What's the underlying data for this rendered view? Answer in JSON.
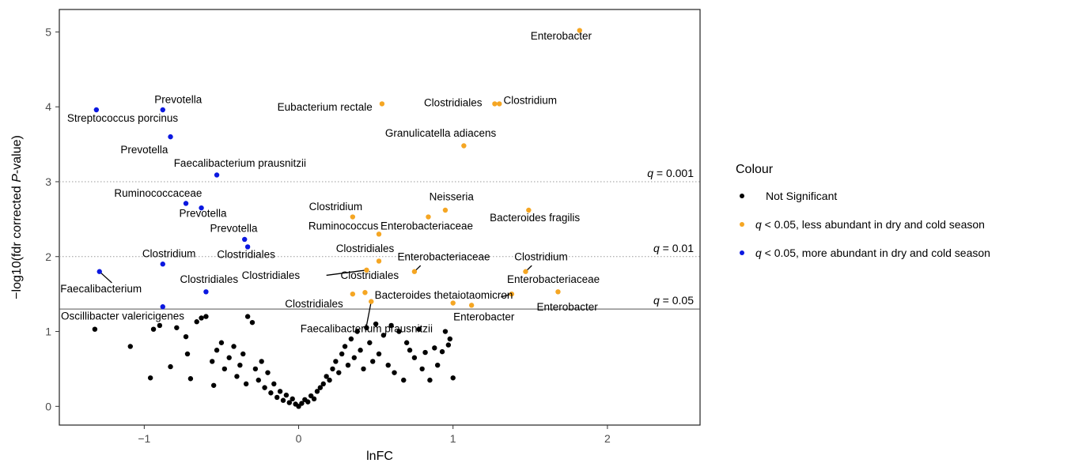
{
  "chart_data": {
    "type": "scatter",
    "title": "",
    "xlabel": "lnFC",
    "ylabel": "-log10(fdr corrected P-value)",
    "ylabel_parts": [
      "−log10(fdr corrected ",
      "P",
      "-value)"
    ],
    "xlim": [
      -1.55,
      2.6
    ],
    "ylim": [
      -0.25,
      5.3
    ],
    "xticks": [
      -1,
      0,
      1,
      2
    ],
    "xtick_labels": [
      "−1",
      "0",
      "1",
      "2"
    ],
    "yticks": [
      0,
      1,
      2,
      3,
      4,
      5
    ],
    "grid": false,
    "legend_position": "right",
    "legend": {
      "title": "Colour",
      "entries": [
        {
          "key": "ns",
          "color": "#000000",
          "italic": "",
          "text": "Not Significant"
        },
        {
          "key": "less",
          "color": "#f5a623",
          "italic": "q",
          "text": " < 0.05, less abundant in dry and cold season"
        },
        {
          "key": "more",
          "color": "#0b18e0",
          "italic": "q",
          "text": " < 0.05, more abundant in dry and cold season"
        }
      ]
    },
    "reference_lines": [
      {
        "y": 3.0,
        "style": "dotted",
        "italic": "q",
        "label": " = 0.001"
      },
      {
        "y": 2.0,
        "style": "dotted",
        "italic": "q",
        "label": " = 0.01"
      },
      {
        "y": 1.3,
        "style": "solid",
        "italic": "q",
        "label": " = 0.05"
      }
    ],
    "series": [
      {
        "key": "less",
        "color": "#f5a623",
        "points": [
          {
            "x": 1.82,
            "y": 5.02,
            "label": "Enterobacter"
          },
          {
            "x": 0.54,
            "y": 4.04,
            "label": "Eubacterium rectale"
          },
          {
            "x": 1.27,
            "y": 4.04,
            "label": "Clostridiales"
          },
          {
            "x": 1.3,
            "y": 4.04,
            "label": "Clostridium"
          },
          {
            "x": 1.07,
            "y": 3.48,
            "label": "Granulicatella adiacens"
          },
          {
            "x": 0.95,
            "y": 2.62,
            "label": "Neisseria"
          },
          {
            "x": 1.49,
            "y": 2.62,
            "label": "Bacteroides fragilis"
          },
          {
            "x": 0.35,
            "y": 2.53,
            "label": "Clostridium"
          },
          {
            "x": 0.84,
            "y": 2.53,
            "label": "Enterobacteriaceae"
          },
          {
            "x": 0.52,
            "y": 2.3,
            "label": "Ruminococcus"
          },
          {
            "x": 0.52,
            "y": 1.94,
            "label": "Clostridiales"
          },
          {
            "x": 0.44,
            "y": 1.82,
            "label": "Clostridiales"
          },
          {
            "x": 0.75,
            "y": 1.8,
            "label": "Enterobacteriaceae"
          },
          {
            "x": 1.47,
            "y": 1.8,
            "label": "Clostridium"
          },
          {
            "x": 0.35,
            "y": 1.5,
            "label": "Clostridiales"
          },
          {
            "x": 0.43,
            "y": 1.52,
            "label": "Clostridiales"
          },
          {
            "x": 0.47,
            "y": 1.4,
            "label": "Faecalibacterium prausnitzii"
          },
          {
            "x": 1.38,
            "y": 1.5,
            "label": "Bacteroides thetaiotaomicron"
          },
          {
            "x": 1.68,
            "y": 1.53,
            "label": "Enterobacteriaceae"
          },
          {
            "x": 1.0,
            "y": 1.38,
            "label": "Enterobacter"
          },
          {
            "x": 1.12,
            "y": 1.35,
            "label": "Enterobacter"
          }
        ]
      },
      {
        "key": "more",
        "color": "#0b18e0",
        "points": [
          {
            "x": -1.31,
            "y": 3.96,
            "label": "Streptococcus porcinus"
          },
          {
            "x": -0.88,
            "y": 3.96,
            "label": "Prevotella"
          },
          {
            "x": -0.83,
            "y": 3.6,
            "label": "Prevotella"
          },
          {
            "x": -0.53,
            "y": 3.09,
            "label": "Faecalibacterium prausnitzii"
          },
          {
            "x": -0.73,
            "y": 2.71,
            "label": "Ruminococcaceae"
          },
          {
            "x": -0.63,
            "y": 2.65,
            "label": "Prevotella"
          },
          {
            "x": -0.35,
            "y": 2.23,
            "label": "Prevotella"
          },
          {
            "x": -0.33,
            "y": 2.13,
            "label": "Clostridiales"
          },
          {
            "x": -0.88,
            "y": 1.9,
            "label": "Clostridium"
          },
          {
            "x": -1.29,
            "y": 1.8,
            "label": "Faecalibacterium"
          },
          {
            "x": -0.6,
            "y": 1.53,
            "label": "Clostridiales"
          },
          {
            "x": -0.88,
            "y": 1.33,
            "label": "Oscillibacter valericigenes"
          }
        ]
      },
      {
        "key": "ns",
        "color": "#000000",
        "points": [
          {
            "x": -1.32,
            "y": 1.03
          },
          {
            "x": -1.09,
            "y": 0.8
          },
          {
            "x": -0.96,
            "y": 0.38
          },
          {
            "x": -0.94,
            "y": 1.03
          },
          {
            "x": -0.9,
            "y": 1.08
          },
          {
            "x": -0.83,
            "y": 0.53
          },
          {
            "x": -0.79,
            "y": 1.05
          },
          {
            "x": -0.73,
            "y": 0.93
          },
          {
            "x": -0.72,
            "y": 0.7
          },
          {
            "x": -0.7,
            "y": 0.37
          },
          {
            "x": -0.66,
            "y": 1.13
          },
          {
            "x": -0.63,
            "y": 1.18
          },
          {
            "x": -0.6,
            "y": 1.2
          },
          {
            "x": -0.56,
            "y": 0.6
          },
          {
            "x": -0.55,
            "y": 0.28
          },
          {
            "x": -0.53,
            "y": 0.75
          },
          {
            "x": -0.5,
            "y": 0.85
          },
          {
            "x": -0.48,
            "y": 0.5
          },
          {
            "x": -0.45,
            "y": 0.65
          },
          {
            "x": -0.42,
            "y": 0.8
          },
          {
            "x": -0.4,
            "y": 0.4
          },
          {
            "x": -0.38,
            "y": 0.55
          },
          {
            "x": -0.36,
            "y": 0.7
          },
          {
            "x": -0.34,
            "y": 0.3
          },
          {
            "x": -0.33,
            "y": 1.2
          },
          {
            "x": -0.3,
            "y": 1.12
          },
          {
            "x": -0.28,
            "y": 0.5
          },
          {
            "x": -0.26,
            "y": 0.35
          },
          {
            "x": -0.24,
            "y": 0.6
          },
          {
            "x": -0.22,
            "y": 0.25
          },
          {
            "x": -0.2,
            "y": 0.45
          },
          {
            "x": -0.18,
            "y": 0.18
          },
          {
            "x": -0.16,
            "y": 0.3
          },
          {
            "x": -0.14,
            "y": 0.12
          },
          {
            "x": -0.12,
            "y": 0.2
          },
          {
            "x": -0.1,
            "y": 0.08
          },
          {
            "x": -0.08,
            "y": 0.15
          },
          {
            "x": -0.06,
            "y": 0.05
          },
          {
            "x": -0.04,
            "y": 0.1
          },
          {
            "x": -0.02,
            "y": 0.03
          },
          {
            "x": 0.0,
            "y": 0.0
          },
          {
            "x": 0.02,
            "y": 0.04
          },
          {
            "x": 0.04,
            "y": 0.09
          },
          {
            "x": 0.06,
            "y": 0.06
          },
          {
            "x": 0.08,
            "y": 0.14
          },
          {
            "x": 0.1,
            "y": 0.1
          },
          {
            "x": 0.12,
            "y": 0.2
          },
          {
            "x": 0.14,
            "y": 0.25
          },
          {
            "x": 0.16,
            "y": 0.3
          },
          {
            "x": 0.18,
            "y": 0.4
          },
          {
            "x": 0.2,
            "y": 0.35
          },
          {
            "x": 0.22,
            "y": 0.5
          },
          {
            "x": 0.24,
            "y": 0.6
          },
          {
            "x": 0.26,
            "y": 0.45
          },
          {
            "x": 0.28,
            "y": 0.7
          },
          {
            "x": 0.3,
            "y": 0.8
          },
          {
            "x": 0.32,
            "y": 0.55
          },
          {
            "x": 0.34,
            "y": 0.9
          },
          {
            "x": 0.36,
            "y": 0.65
          },
          {
            "x": 0.38,
            "y": 1.0
          },
          {
            "x": 0.4,
            "y": 0.75
          },
          {
            "x": 0.42,
            "y": 0.5
          },
          {
            "x": 0.44,
            "y": 1.05
          },
          {
            "x": 0.46,
            "y": 0.85
          },
          {
            "x": 0.48,
            "y": 0.6
          },
          {
            "x": 0.5,
            "y": 1.1
          },
          {
            "x": 0.52,
            "y": 0.7
          },
          {
            "x": 0.55,
            "y": 0.95
          },
          {
            "x": 0.58,
            "y": 0.55
          },
          {
            "x": 0.6,
            "y": 1.08
          },
          {
            "x": 0.62,
            "y": 0.45
          },
          {
            "x": 0.65,
            "y": 1.0
          },
          {
            "x": 0.68,
            "y": 0.35
          },
          {
            "x": 0.7,
            "y": 0.85
          },
          {
            "x": 0.72,
            "y": 0.75
          },
          {
            "x": 0.75,
            "y": 0.65
          },
          {
            "x": 0.78,
            "y": 1.03
          },
          {
            "x": 0.8,
            "y": 0.5
          },
          {
            "x": 0.82,
            "y": 0.72
          },
          {
            "x": 0.85,
            "y": 0.35
          },
          {
            "x": 0.88,
            "y": 0.78
          },
          {
            "x": 0.9,
            "y": 0.55
          },
          {
            "x": 0.93,
            "y": 0.73
          },
          {
            "x": 0.95,
            "y": 1.0
          },
          {
            "x": 0.97,
            "y": 0.82
          },
          {
            "x": 0.98,
            "y": 0.9
          },
          {
            "x": 1.0,
            "y": 0.38
          }
        ]
      }
    ],
    "annotations": [
      {
        "text": "Enterobacter",
        "x": 1.7,
        "y": 4.9
      },
      {
        "text": "Eubacterium rectale",
        "x": 0.17,
        "y": 3.95
      },
      {
        "text": "Clostridiales",
        "x": 1.0,
        "y": 4.01
      },
      {
        "text": "Clostridium",
        "x": 1.5,
        "y": 4.04
      },
      {
        "text": "Granulicatella adiacens",
        "x": 0.92,
        "y": 3.6
      },
      {
        "text": "Neisseria",
        "x": 0.99,
        "y": 2.75
      },
      {
        "text": "Bacteroides fragilis",
        "x": 1.53,
        "y": 2.47
      },
      {
        "text": "Clostridium",
        "x": 0.24,
        "y": 2.62
      },
      {
        "text": "Enterobacteriaceae",
        "x": 0.83,
        "y": 2.36
      },
      {
        "text": "Ruminococcus",
        "x": 0.29,
        "y": 2.36
      },
      {
        "text": "Clostridiales",
        "x": 0.43,
        "y": 2.06
      },
      {
        "text": "Enterobacteriaceae",
        "x": 0.94,
        "y": 1.95
      },
      {
        "text": "Clostridium",
        "x": 1.57,
        "y": 1.95
      },
      {
        "text": "Clostridiales",
        "x": -0.18,
        "y": 1.7
      },
      {
        "text": "Clostridiales",
        "x": 0.46,
        "y": 1.7
      },
      {
        "text": "Enterobacteriaceae",
        "x": 1.65,
        "y": 1.65
      },
      {
        "text": "Clostridiales",
        "x": 0.1,
        "y": 1.32
      },
      {
        "text": "Bacteroides thetaiotaomicron",
        "x": 0.94,
        "y": 1.44
      },
      {
        "text": "Enterobacter",
        "x": 1.74,
        "y": 1.28
      },
      {
        "text": "Enterobacter",
        "x": 1.2,
        "y": 1.15
      },
      {
        "text": "Faecalibacterium prausnitzii",
        "x": 0.44,
        "y": 0.99
      },
      {
        "text": "Prevotella",
        "x": -0.78,
        "y": 4.05
      },
      {
        "text": "Streptococcus porcinus",
        "x": -1.14,
        "y": 3.8
      },
      {
        "text": "Prevotella",
        "x": -1.0,
        "y": 3.38
      },
      {
        "text": "Faecalibacterium prausnitzii",
        "x": -0.38,
        "y": 3.2
      },
      {
        "text": "Ruminococcaceae",
        "x": -0.91,
        "y": 2.8
      },
      {
        "text": "Prevotella",
        "x": -0.62,
        "y": 2.53
      },
      {
        "text": "Prevotella",
        "x": -0.42,
        "y": 2.33
      },
      {
        "text": "Clostridiales",
        "x": -0.34,
        "y": 1.98
      },
      {
        "text": "Clostridium",
        "x": -0.84,
        "y": 1.99
      },
      {
        "text": "Faecalibacterium",
        "x": -1.28,
        "y": 1.52
      },
      {
        "text": "Clostridiales",
        "x": -0.58,
        "y": 1.65
      },
      {
        "text": "Oscillibacter valericigenes",
        "x": -1.14,
        "y": 1.16
      }
    ],
    "connectors": [
      {
        "x1": -1.29,
        "y1": 1.8,
        "x2": -1.21,
        "y2": 1.65
      },
      {
        "x1": 0.44,
        "y1": 1.82,
        "x2": 0.18,
        "y2": 1.75
      },
      {
        "x1": 0.75,
        "y1": 1.8,
        "x2": 0.79,
        "y2": 1.88
      },
      {
        "x1": 1.47,
        "y1": 1.8,
        "x2": 1.51,
        "y2": 1.88
      },
      {
        "x1": 0.47,
        "y1": 1.4,
        "x2": 0.44,
        "y2": 1.08
      },
      {
        "x1": 1.38,
        "y1": 1.5,
        "x2": 1.31,
        "y2": 1.46
      }
    ]
  }
}
